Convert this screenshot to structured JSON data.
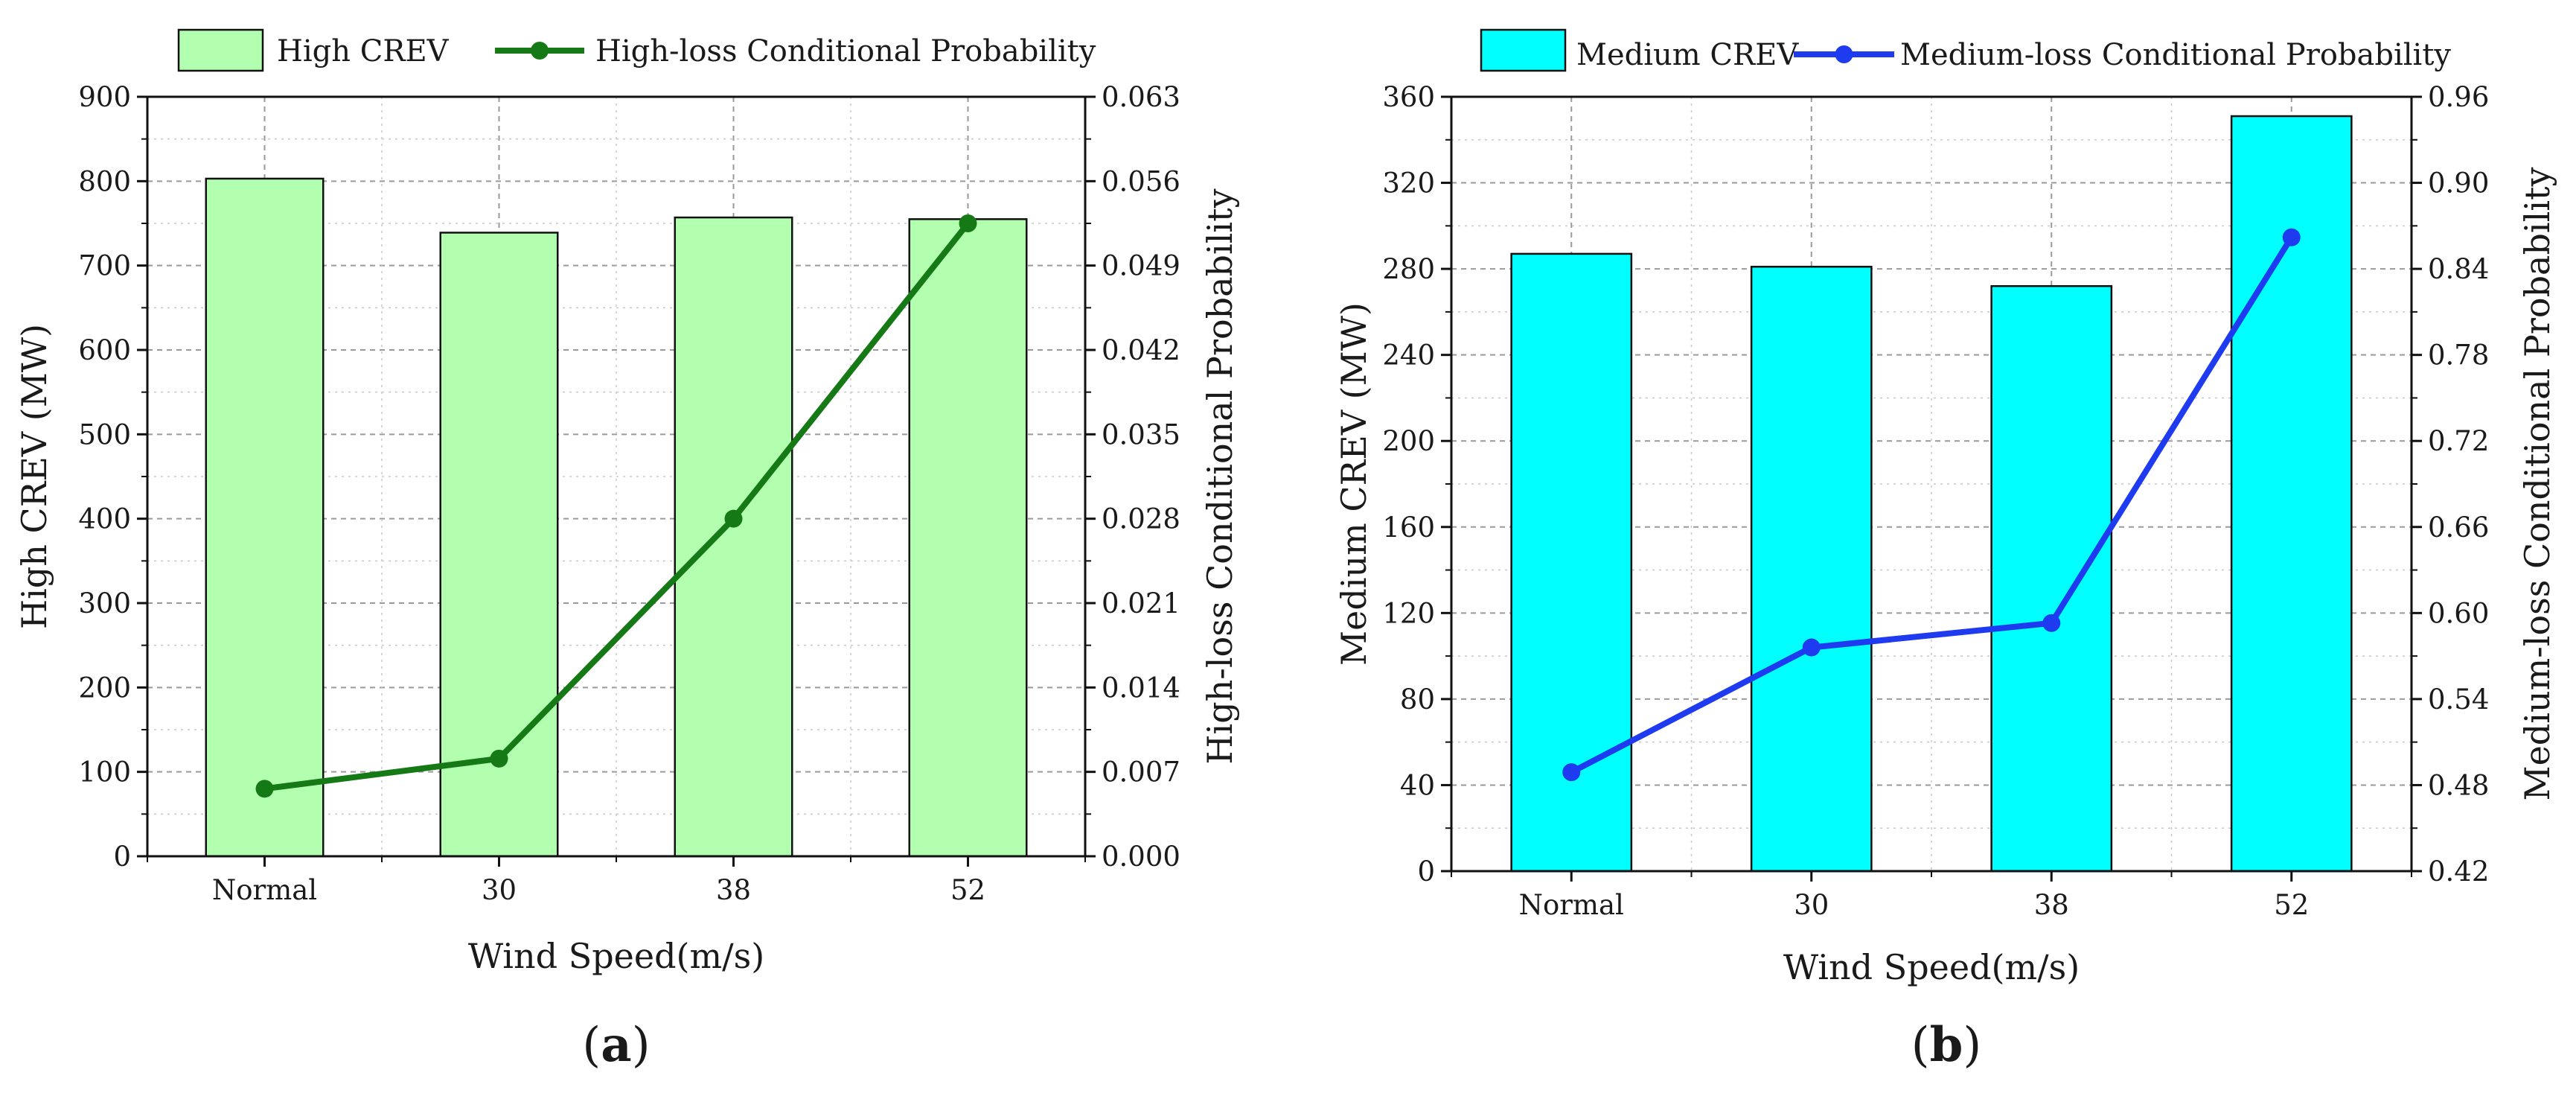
{
  "chart_data": [
    {
      "type": "bar+line",
      "panel_label": "(a)",
      "panel_letter": "a",
      "categories": [
        "Normal",
        "30",
        "38",
        "52"
      ],
      "xlabel": "Wind Speed(m/s)",
      "bar_series": {
        "name": "High CREV",
        "values": [
          803,
          739,
          757,
          755
        ],
        "color": "#b3ffb0",
        "axis": "left"
      },
      "line_series": {
        "name": "High-loss Conditional Probability",
        "values": [
          0.0056,
          0.0081,
          0.028,
          0.0525
        ],
        "color": "#157a15",
        "axis": "right"
      },
      "ylabel_left": "High CREV (MW)",
      "ylabel_right": "High-loss Conditional Probability",
      "ylim_left": [
        0,
        900
      ],
      "yticks_left": [
        "0",
        "100",
        "200",
        "300",
        "400",
        "500",
        "600",
        "700",
        "800",
        "900"
      ],
      "ylim_right": [
        0,
        0.063
      ],
      "yticks_right": [
        "0.000",
        "0.007",
        "0.014",
        "0.021",
        "0.028",
        "0.035",
        "0.042",
        "0.049",
        "0.056",
        "0.063"
      ],
      "grid": true,
      "legend_position": "top"
    },
    {
      "type": "bar+line",
      "panel_label": "(b)",
      "panel_letter": "b",
      "categories": [
        "Normal",
        "30",
        "38",
        "52"
      ],
      "xlabel": "Wind Speed(m/s)",
      "bar_series": {
        "name": "Medium CREV",
        "values": [
          287,
          281,
          272,
          351
        ],
        "color": "#00ffff",
        "axis": "left"
      },
      "line_series": {
        "name": "Medium-loss Conditional Probability",
        "values": [
          0.489,
          0.576,
          0.593,
          0.862
        ],
        "color": "#1f3bef",
        "axis": "right"
      },
      "ylabel_left": "Medium CREV (MW)",
      "ylabel_right": "Medium-loss Conditional Probability",
      "ylim_left": [
        0,
        360
      ],
      "yticks_left": [
        "0",
        "40",
        "80",
        "120",
        "160",
        "200",
        "240",
        "280",
        "320",
        "360"
      ],
      "ylim_right": [
        0.42,
        0.96
      ],
      "yticks_right": [
        "0.42",
        "0.48",
        "0.54",
        "0.60",
        "0.66",
        "0.72",
        "0.78",
        "0.84",
        "0.90",
        "0.96"
      ],
      "grid": true,
      "legend_position": "top"
    }
  ]
}
